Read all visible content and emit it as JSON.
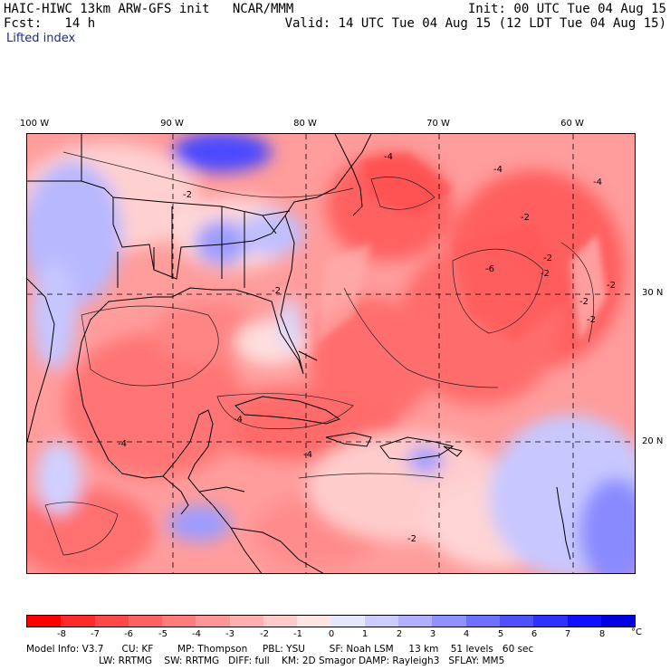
{
  "header": {
    "title": "HAIC-HIWC 13km ARW-GFS init   NCAR/MMM",
    "init": "Init: 00 UTC Tue 04 Aug 15",
    "fcst": "Fcst:   14 h",
    "valid": "Valid: 14 UTC Tue 04 Aug 15 (12 LDT Tue 04 Aug 15)",
    "field": "Lifted index"
  },
  "axes": {
    "lon_labels": [
      "100 W",
      "90 W",
      "80 W",
      "70 W",
      "60 W"
    ],
    "lat_labels": [
      "30 N",
      "20 N"
    ]
  },
  "contour_labels": [
    "-4",
    "-2",
    "-2",
    "-4",
    "-6",
    "-2",
    "-2",
    "-4",
    "-2",
    "-4",
    "-4",
    "-2",
    "-2",
    "-4",
    "-2",
    "-2"
  ],
  "colorbar": {
    "ticks": [
      "-8",
      "-7",
      "-6",
      "-5",
      "-4",
      "-3",
      "-2",
      "-1",
      "0",
      "1",
      "2",
      "3",
      "4",
      "5",
      "6",
      "7",
      "8"
    ],
    "unit": "°C",
    "colors": [
      "#ff0000",
      "#ff2a2a",
      "#ff4848",
      "#ff6262",
      "#ff7c7c",
      "#ff9696",
      "#ffb0b0",
      "#ffcaca",
      "#ffe4e4",
      "#e6e6ff",
      "#ccccff",
      "#b0b0ff",
      "#9090ff",
      "#7070ff",
      "#5050ff",
      "#3030ff",
      "#1010ff",
      "#0000e0"
    ]
  },
  "model_info": {
    "line1": "Model Info: V3.7      CU: KF        MP: Thompson     PBL: YSU        SF: Noah LSM     13 km    51 levels   60 sec",
    "line2": "                        LW: RRTMG    SW: RRTMG   DIFF: full    KM: 2D Smagor DAMP: Rayleigh3   SFLAY: MM5"
  }
}
